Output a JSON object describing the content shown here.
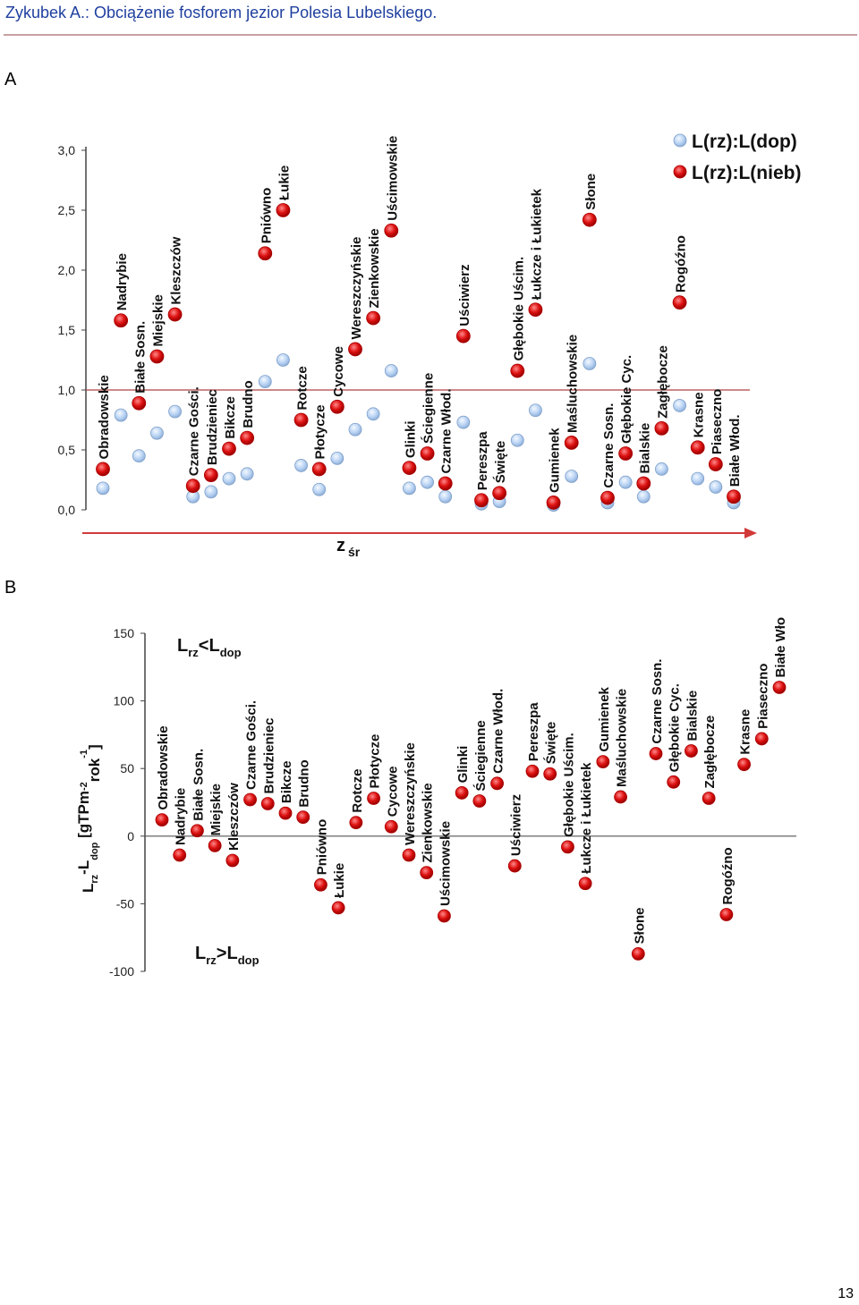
{
  "header": {
    "title": "Zykubek A.: Obciążenie fosforem jezior Polesia Lubelskiego."
  },
  "page_number": "13",
  "chart_data": [
    {
      "panel_label": "A",
      "type": "scatter",
      "ylim": [
        0,
        3.0
      ],
      "yticks": [
        "0,0",
        "0,5",
        "1,0",
        "1,5",
        "2,0",
        "2,5",
        "3,0"
      ],
      "reference_line_y": 1.0,
      "x_arrow_label": "z",
      "x_arrow_label_sub": "śr",
      "legend_position": "top-right",
      "series": [
        {
          "name": "L(rz):L(dop)",
          "color": "#aac8f0"
        },
        {
          "name": "L(rz):L(nieb)",
          "color": "#dd1111"
        }
      ],
      "lakes": [
        {
          "name": "Obradowskie",
          "dop": 0.18,
          "nieb": 0.34
        },
        {
          "name": "Nadrybie",
          "dop": 0.79,
          "nieb": 1.58
        },
        {
          "name": "Białe Sosn.",
          "dop": 0.45,
          "nieb": 0.89
        },
        {
          "name": "Miejskie",
          "dop": 0.64,
          "nieb": 1.28
        },
        {
          "name": "Kleszczów",
          "dop": 0.82,
          "nieb": 1.63
        },
        {
          "name": "Czarne Gości.",
          "dop": 0.11,
          "nieb": 0.2
        },
        {
          "name": "Brudzieniec",
          "dop": 0.15,
          "nieb": 0.29
        },
        {
          "name": "Bikcze",
          "dop": 0.26,
          "nieb": 0.51
        },
        {
          "name": "Brudno",
          "dop": 0.3,
          "nieb": 0.6
        },
        {
          "name": "Pniówno",
          "dop": 1.07,
          "nieb": 2.14
        },
        {
          "name": "Łukie",
          "dop": 1.25,
          "nieb": 2.5
        },
        {
          "name": "Rotcze",
          "dop": 0.37,
          "nieb": 0.75
        },
        {
          "name": "Płotycze",
          "dop": 0.17,
          "nieb": 0.34
        },
        {
          "name": "Cycowe",
          "dop": 0.43,
          "nieb": 0.86
        },
        {
          "name": "Wereszczyńskie",
          "dop": 0.67,
          "nieb": 1.34
        },
        {
          "name": "Zienkowskie",
          "dop": 0.8,
          "nieb": 1.6
        },
        {
          "name": "Uścimowskie",
          "dop": 1.16,
          "nieb": 2.33
        },
        {
          "name": "Glinki",
          "dop": 0.18,
          "nieb": 0.35
        },
        {
          "name": "Ściegienne",
          "dop": 0.23,
          "nieb": 0.47
        },
        {
          "name": "Czarne Włod.",
          "dop": 0.11,
          "nieb": 0.22
        },
        {
          "name": "Uściwierz",
          "dop": 0.73,
          "nieb": 1.45
        },
        {
          "name": "Pereszpa",
          "dop": 0.05,
          "nieb": 0.08
        },
        {
          "name": "Święte",
          "dop": 0.07,
          "nieb": 0.14
        },
        {
          "name": "Głębokie Uścim.",
          "dop": 0.58,
          "nieb": 1.16
        },
        {
          "name": "Łukcze i Łukietek",
          "dop": 0.83,
          "nieb": 1.67
        },
        {
          "name": "Gumienek",
          "dop": 0.04,
          "nieb": 0.06
        },
        {
          "name": "Maśluchowskie",
          "dop": 0.28,
          "nieb": 0.56
        },
        {
          "name": "Słone",
          "dop": 1.22,
          "nieb": 2.42
        },
        {
          "name": "Czarne Sosn.",
          "dop": 0.06,
          "nieb": 0.1
        },
        {
          "name": "Głębokie Cyc.",
          "dop": 0.23,
          "nieb": 0.47
        },
        {
          "name": "Bialskie",
          "dop": 0.11,
          "nieb": 0.22
        },
        {
          "name": "Zagłębocze",
          "dop": 0.34,
          "nieb": 0.68
        },
        {
          "name": "Rogóźno",
          "dop": 0.87,
          "nieb": 1.73
        },
        {
          "name": "Krasne",
          "dop": 0.26,
          "nieb": 0.52
        },
        {
          "name": "Piaseczno",
          "dop": 0.19,
          "nieb": 0.38
        },
        {
          "name": "Białe Włod.",
          "dop": 0.06,
          "nieb": 0.11
        }
      ]
    },
    {
      "panel_label": "B",
      "type": "scatter",
      "ylim": [
        -100,
        150
      ],
      "yticks": [
        "-100",
        "-50",
        "0",
        "50",
        "100",
        "150"
      ],
      "ylabel_parts": [
        "L",
        "rz",
        "-L",
        "dop",
        " [gTPm",
        "-2",
        "rok",
        "-1",
        "]"
      ],
      "annotation_top": {
        "main1": "L",
        "sub1": "rz",
        "main2": "<L",
        "sub2": "dop"
      },
      "annotation_bottom": {
        "main1": "L",
        "sub1": "rz",
        "main2": ">L",
        "sub2": "dop"
      },
      "series": [
        {
          "name": "",
          "color": "#dd1111"
        }
      ],
      "lakes": [
        {
          "name": "Obradowskie",
          "value": 12
        },
        {
          "name": "Nadrybie",
          "value": -14
        },
        {
          "name": "Białe Sosn.",
          "value": 4
        },
        {
          "name": "Miejskie",
          "value": -7
        },
        {
          "name": "Kleszczów",
          "value": -18
        },
        {
          "name": "Czarne Gości.",
          "value": 27
        },
        {
          "name": "Brudzieniec",
          "value": 24
        },
        {
          "name": "Bikcze",
          "value": 17
        },
        {
          "name": "Brudno",
          "value": 14
        },
        {
          "name": "Pniówno",
          "value": -36
        },
        {
          "name": "Łukie",
          "value": -53
        },
        {
          "name": "Rotcze",
          "value": 10
        },
        {
          "name": "Płotycze",
          "value": 28
        },
        {
          "name": "Cycowe",
          "value": 7
        },
        {
          "name": "Wereszczyńskie",
          "value": -14
        },
        {
          "name": "Zienkowskie",
          "value": -27
        },
        {
          "name": "Uścimowskie",
          "value": -59
        },
        {
          "name": "Glinki",
          "value": 32
        },
        {
          "name": "Ściegienne",
          "value": 26
        },
        {
          "name": "Czarne Włod.",
          "value": 39
        },
        {
          "name": "Uściwierz",
          "value": -22
        },
        {
          "name": "Pereszpa",
          "value": 48
        },
        {
          "name": "Święte",
          "value": 46
        },
        {
          "name": "Głębokie Uścim.",
          "value": -8
        },
        {
          "name": "Łukcze i Łukietek",
          "value": -35
        },
        {
          "name": "Gumienek",
          "value": 55
        },
        {
          "name": "Maśluchowskie",
          "value": 29
        },
        {
          "name": "Słone",
          "value": -87
        },
        {
          "name": "Czarne Sosn.",
          "value": 61
        },
        {
          "name": "Głębokie Cyc.",
          "value": 40
        },
        {
          "name": "Bialskie",
          "value": 63
        },
        {
          "name": "Zagłębocze",
          "value": 28
        },
        {
          "name": "Rogóźno",
          "value": -58
        },
        {
          "name": "Krasne",
          "value": 53
        },
        {
          "name": "Piaseczno",
          "value": 72
        },
        {
          "name": "Białe Włod.",
          "value": 110
        }
      ]
    }
  ]
}
